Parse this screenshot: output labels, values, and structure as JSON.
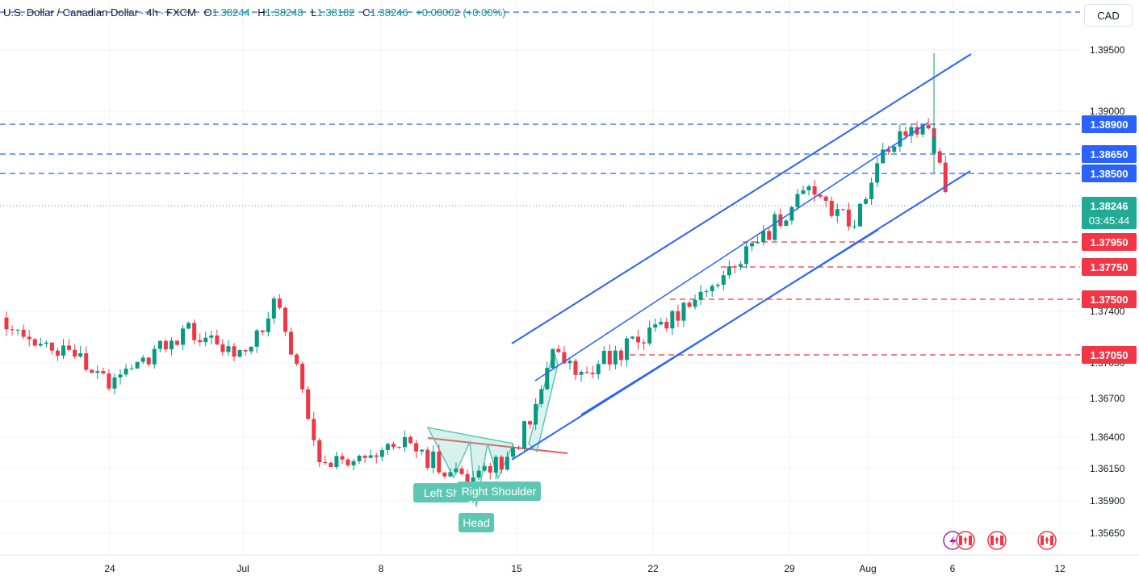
{
  "legend": {
    "symbol": "U.S. Dollar / Canadian Dollar",
    "interval": "4h",
    "source": "FXCM",
    "o_label": "O",
    "o_value": "1.38244",
    "h_label": "H",
    "h_value": "1.38248",
    "l_label": "L",
    "l_value": "1.38182",
    "c_label": "C",
    "c_value": "1.38246",
    "change": "+0.00002 (+0.00%)"
  },
  "currency_badge": "CAD",
  "colors": {
    "up": "#089981",
    "down": "#f23645",
    "channel": "#2962ff",
    "resistance": "#2962ff",
    "support": "#f23645",
    "pattern": "#5ec7b4",
    "current": "#22ab94"
  },
  "chart_data": {
    "type": "candlestick",
    "interval": "4h",
    "y_axis": {
      "ticks": [
        "1.39500",
        "1.39000",
        "1.37400",
        "1.37050",
        "1.36700",
        "1.36400",
        "1.36150",
        "1.35900",
        "1.35650"
      ],
      "range": [
        1.3547,
        1.3975
      ]
    },
    "x_axis": {
      "ticks": [
        "24",
        "Jul",
        "8",
        "15",
        "22",
        "29",
        "Aug",
        "6",
        "12"
      ]
    },
    "ohlc_path": [
      {
        "x": "Jun 17",
        "price": 1.3735
      },
      {
        "x": "Jun 24",
        "price": 1.3685
      },
      {
        "x": "Jun 28",
        "price": 1.3725
      },
      {
        "x": "Jul 1",
        "price": 1.3705
      },
      {
        "x": "Jul 3",
        "price": 1.375
      },
      {
        "x": "Jul 5",
        "price": 1.3615
      },
      {
        "x": "Jul 9",
        "price": 1.364
      },
      {
        "x": "Jul 12",
        "price": 1.36
      },
      {
        "x": "Jul 15",
        "price": 1.363
      },
      {
        "x": "Jul 17",
        "price": 1.371
      },
      {
        "x": "Jul 19",
        "price": 1.369
      },
      {
        "x": "Jul 24",
        "price": 1.374
      },
      {
        "x": "Jul 30",
        "price": 1.3835
      },
      {
        "x": "Aug 1",
        "price": 1.381
      },
      {
        "x": "Aug 2",
        "price": 1.3875
      },
      {
        "x": "Aug 5",
        "price": 1.3885
      },
      {
        "x": "Aug 6",
        "price": 1.38246
      }
    ],
    "horizontal_levels": [
      {
        "price": "1.38900",
        "kind": "resistance"
      },
      {
        "price": "1.38650",
        "kind": "resistance"
      },
      {
        "price": "1.38500",
        "kind": "resistance"
      },
      {
        "price": "1.37950",
        "kind": "support"
      },
      {
        "price": "1.37750",
        "kind": "support"
      },
      {
        "price": "1.37500",
        "kind": "support"
      },
      {
        "price": "1.37050",
        "kind": "support"
      }
    ],
    "current_price": {
      "price": "1.38246",
      "countdown": "03:45:44"
    },
    "pattern_labels": {
      "left_shoulder": "Left Sh",
      "right_shoulder": "Right Shoulder",
      "head": "Head"
    }
  }
}
